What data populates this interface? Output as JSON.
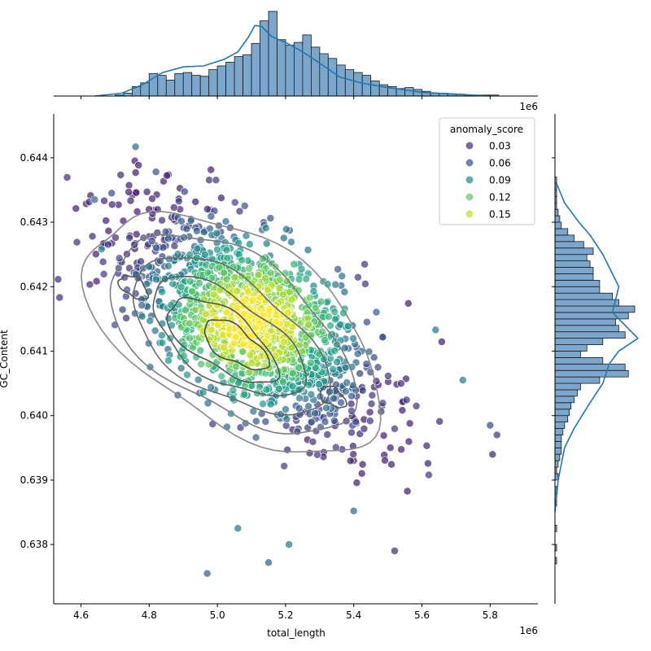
{
  "chart_data": {
    "type": "scatter",
    "subtype": "jointplot with marginal histograms, KDE curves and density contours",
    "xlabel": "total_length",
    "ylabel": "GC_Content",
    "x_offset_label": "1e6",
    "xlim": [
      4.52,
      5.94
    ],
    "ylim": [
      0.63708,
      0.64468
    ],
    "x_ticks": [
      4.6,
      4.8,
      5.0,
      5.2,
      5.4,
      5.6,
      5.8
    ],
    "x_tick_labels": [
      "4.6",
      "4.8",
      "5.0",
      "5.2",
      "5.4",
      "5.6",
      "5.8"
    ],
    "y_ticks": [
      0.638,
      0.639,
      0.64,
      0.641,
      0.642,
      0.643,
      0.644
    ],
    "y_tick_labels": [
      "0.638",
      "0.639",
      "0.640",
      "0.641",
      "0.642",
      "0.643",
      "0.644"
    ],
    "grid": false,
    "legend": {
      "title": "anomaly_score",
      "placement": "top-right",
      "entries": [
        {
          "label": "0.03",
          "color": "#472c7a"
        },
        {
          "label": "0.06",
          "color": "#3b528b"
        },
        {
          "label": "0.09",
          "color": "#21918c"
        },
        {
          "label": "0.12",
          "color": "#5ec962"
        },
        {
          "label": "0.15",
          "color": "#c2df23"
        }
      ]
    },
    "colormap": "viridis",
    "color_range": [
      0.0,
      0.17
    ],
    "point_count": 1500,
    "center": {
      "x": 5.1,
      "y": 0.64145
    },
    "x_std": 0.195,
    "y_std": 0.00088,
    "correlation": -0.62,
    "notable_outliers": [
      {
        "x": 4.76,
        "y": 0.64417,
        "score": 0.06
      },
      {
        "x": 4.82,
        "y": 0.64378,
        "score": 0.04
      },
      {
        "x": 4.97,
        "y": 0.63755,
        "score": 0.05
      },
      {
        "x": 5.06,
        "y": 0.63825,
        "score": 0.07
      },
      {
        "x": 5.15,
        "y": 0.63772,
        "score": 0.05
      },
      {
        "x": 5.21,
        "y": 0.638,
        "score": 0.07
      },
      {
        "x": 5.52,
        "y": 0.6379,
        "score": 0.02
      },
      {
        "x": 5.82,
        "y": 0.6397,
        "score": 0.03
      },
      {
        "x": 5.8,
        "y": 0.63985,
        "score": 0.04
      },
      {
        "x": 5.64,
        "y": 0.64133,
        "score": 0.07
      },
      {
        "x": 5.72,
        "y": 0.64055,
        "score": 0.07
      },
      {
        "x": 4.64,
        "y": 0.64335,
        "score": 0.06
      },
      {
        "x": 4.69,
        "y": 0.64345,
        "score": 0.04
      },
      {
        "x": 4.66,
        "y": 0.64258,
        "score": 0.08
      },
      {
        "x": 5.62,
        "y": 0.63908,
        "score": 0.03
      },
      {
        "x": 5.4,
        "y": 0.63852,
        "score": 0.06
      }
    ],
    "contour_color": "#555555",
    "histogram_color": "#7ba7cc",
    "kde_color": "#1f77b4",
    "top_histogram": {
      "bin_start": 4.6,
      "bin_width": 0.025,
      "counts": [
        0,
        0,
        0,
        0,
        1,
        3,
        10,
        14,
        24,
        22,
        17,
        24,
        25,
        22,
        21,
        28,
        32,
        36,
        42,
        44,
        56,
        80,
        90,
        60,
        54,
        57,
        65,
        52,
        45,
        40,
        33,
        28,
        25,
        22,
        16,
        12,
        10,
        8,
        9,
        7,
        5,
        3,
        3,
        2,
        2,
        1,
        1,
        1,
        1,
        0,
        0
      ],
      "kde_x": [
        4.64,
        4.72,
        4.78,
        4.84,
        4.9,
        4.96,
        5.02,
        5.06,
        5.09,
        5.11,
        5.13,
        5.16,
        5.2,
        5.25,
        5.3,
        5.36,
        5.42,
        5.5,
        5.6,
        5.7,
        5.8
      ],
      "kde_y": [
        0,
        3,
        12,
        25,
        31,
        32,
        39,
        47,
        62,
        75,
        74,
        63,
        57,
        47,
        35,
        20,
        14,
        9,
        4,
        2,
        0
      ]
    },
    "right_histogram": {
      "bin_start": 0.637,
      "bin_width": 0.0001,
      "counts": [
        0,
        0,
        0,
        0,
        0,
        0,
        0,
        1,
        0,
        1,
        0,
        0,
        1,
        0,
        0,
        0,
        1,
        1,
        1,
        0,
        2,
        1,
        2,
        3,
        4,
        4,
        4,
        5,
        6,
        8,
        9,
        10,
        12,
        14,
        16,
        28,
        46,
        44,
        30,
        16,
        20,
        30,
        44,
        40,
        38,
        46,
        50,
        40,
        36,
        28,
        28,
        24,
        24,
        22,
        20,
        24,
        18,
        12,
        8,
        4,
        3,
        2,
        1,
        1,
        1,
        1,
        1,
        0,
        0,
        0,
        0,
        0,
        0,
        0,
        0,
        0,
        0
      ],
      "kde_y": [
        0.6385,
        0.639,
        0.6395,
        0.6398,
        0.6402,
        0.6405,
        0.6408,
        0.641,
        0.6412,
        0.6414,
        0.6416,
        0.6418,
        0.642,
        0.6422,
        0.6425,
        0.6428,
        0.643,
        0.6433,
        0.6436
      ],
      "kde_x": [
        0,
        2,
        6,
        12,
        22,
        30,
        34,
        40,
        52,
        44,
        36,
        38,
        40,
        36,
        30,
        22,
        15,
        6,
        1
      ]
    }
  }
}
